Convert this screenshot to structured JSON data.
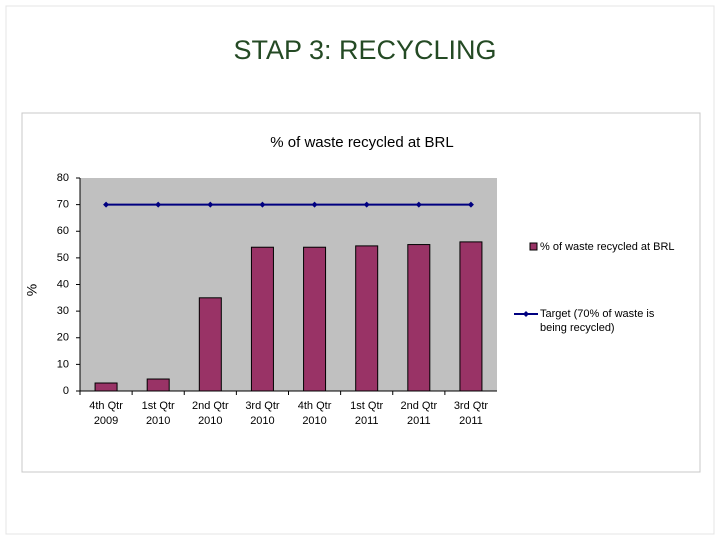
{
  "slide_title": "STAP 3: RECYCLING",
  "chart_data": {
    "type": "combo",
    "title": "% of waste recycled at BRL",
    "ylabel": "%",
    "categories": [
      "4th Qtr 2009",
      "1st Qtr 2010",
      "2nd Qtr 2010",
      "3rd Qtr 2010",
      "4th Qtr 2010",
      "1st Qtr 2011",
      "2nd Qtr 2011",
      "3rd Qtr 2011"
    ],
    "series": [
      {
        "name": "% of waste recycled at BRL",
        "kind": "bar",
        "color": "#993366",
        "values": [
          3,
          4.5,
          35,
          54,
          54,
          54.5,
          55,
          56
        ]
      },
      {
        "name": "Target (70% of waste is being recycled)",
        "kind": "line",
        "color": "#000080",
        "values": [
          70,
          70,
          70,
          70,
          70,
          70,
          70,
          70
        ]
      }
    ],
    "ylim": [
      0,
      80
    ],
    "yticks": [
      0,
      10,
      20,
      30,
      40,
      50,
      60,
      70,
      80
    ],
    "legend": "right"
  }
}
